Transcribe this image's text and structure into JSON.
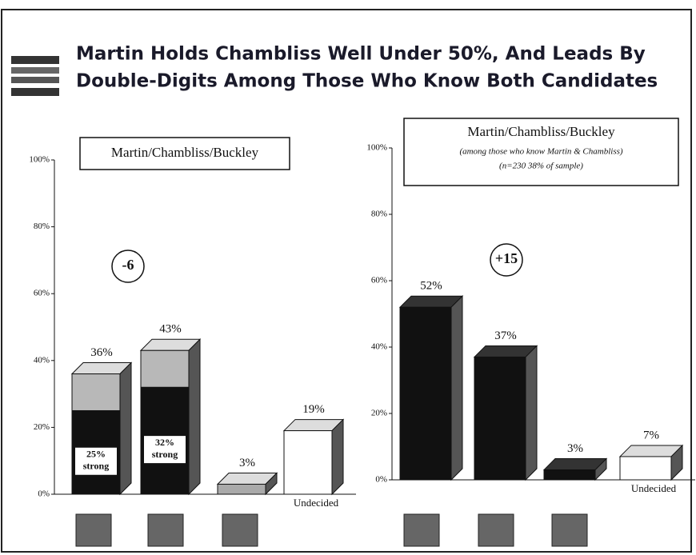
{
  "title": [
    "Martin Holds Chambliss Well Under 50%, And Leads By",
    "Double-Digits Among Those Who Know Both Candidates"
  ],
  "chart_data": [
    {
      "type": "bar",
      "title": "Martin/Chambliss/Buckley",
      "annotation": "-6",
      "categories": [
        null,
        null,
        null,
        "Undecided"
      ],
      "values": [
        36,
        43,
        3,
        19
      ],
      "value_labels": [
        "36%",
        "43%",
        "3%",
        "19%"
      ],
      "inner_values": [
        25,
        32,
        null,
        null
      ],
      "inner_labels": [
        "25%",
        "32%",
        null,
        null
      ],
      "inner_sublabels": [
        "strong",
        "strong",
        null,
        null
      ],
      "colors": [
        "#b8b8b8",
        "#b8b8b8",
        "#aaaaaa",
        "#ffffff"
      ],
      "inner_color": "#111111",
      "ylim": [
        0,
        100
      ],
      "yticks": [
        {
          "value": 0,
          "label": "0%"
        },
        {
          "value": 20,
          "label": "20%"
        },
        {
          "value": 40,
          "label": "40%"
        },
        {
          "value": 60,
          "label": "60%"
        },
        {
          "value": 80,
          "label": "80%"
        },
        {
          "value": 100,
          "label": "100%"
        }
      ]
    },
    {
      "type": "bar",
      "title": "Martin/Chambliss/Buckley",
      "subtitle": "(among those who know Martin & Chambliss)",
      "note": "(n=230 38% of sample)",
      "annotation": "+15",
      "categories": [
        null,
        null,
        null,
        "Undecided"
      ],
      "values": [
        52,
        37,
        3,
        7
      ],
      "value_labels": [
        "52%",
        "37%",
        "3%",
        "7%"
      ],
      "colors": [
        "#111111",
        "#111111",
        "#111111",
        "#ffffff"
      ],
      "ylim": [
        0,
        100
      ],
      "yticks": [
        {
          "value": 0,
          "label": "0%"
        },
        {
          "value": 20,
          "label": "20%"
        },
        {
          "value": 40,
          "label": "40%"
        },
        {
          "value": 60,
          "label": "60%"
        },
        {
          "value": 80,
          "label": "80%"
        },
        {
          "value": 100,
          "label": "100%"
        }
      ]
    }
  ]
}
